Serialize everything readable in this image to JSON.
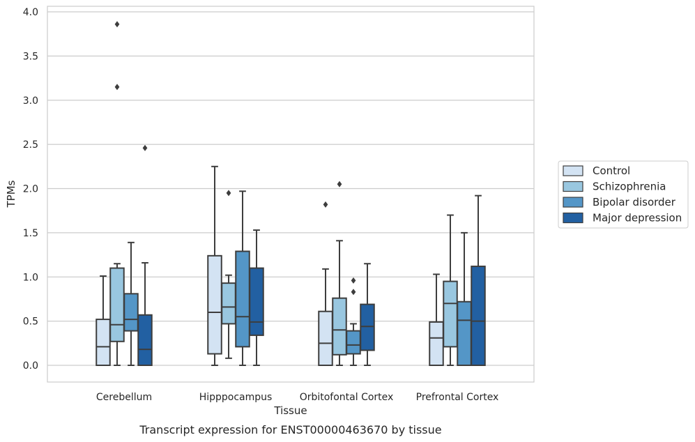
{
  "caption": "Transcript expression for ENST00000463670 by tissue",
  "chart_data": {
    "type": "box",
    "xlabel": "Tissue",
    "ylabel": "TPMs",
    "ylim": [
      -0.18,
      4.05
    ],
    "yticks": [
      "0.0",
      "0.5",
      "1.0",
      "1.5",
      "2.0",
      "2.5",
      "3.0",
      "3.5",
      "4.0"
    ],
    "categories": [
      "Cerebellum",
      "Hipppocampus",
      "Orbitofontal Cortex",
      "Prefrontal Cortex"
    ],
    "grid": "horizontal",
    "legend_position": "right",
    "series": [
      {
        "name": "Control",
        "color": "#d3e3f3",
        "boxes": [
          {
            "low": 0.0,
            "q1": 0.0,
            "median": 0.21,
            "q3": 0.52,
            "high": 1.01,
            "outliers": []
          },
          {
            "low": 0.0,
            "q1": 0.13,
            "median": 0.6,
            "q3": 1.24,
            "high": 2.25,
            "outliers": []
          },
          {
            "low": 0.0,
            "q1": 0.0,
            "median": 0.25,
            "q3": 0.61,
            "high": 1.09,
            "outliers": [
              1.82
            ]
          },
          {
            "low": 0.0,
            "q1": 0.0,
            "median": 0.31,
            "q3": 0.49,
            "high": 1.03,
            "outliers": []
          }
        ]
      },
      {
        "name": "Schizophrenia",
        "color": "#99c7e0",
        "boxes": [
          {
            "low": 0.0,
            "q1": 0.27,
            "median": 0.46,
            "q3": 1.1,
            "high": 1.15,
            "outliers": [
              3.86,
              3.15
            ]
          },
          {
            "low": 0.08,
            "q1": 0.47,
            "median": 0.66,
            "q3": 0.93,
            "high": 1.02,
            "outliers": [
              1.95
            ]
          },
          {
            "low": 0.0,
            "q1": 0.12,
            "median": 0.4,
            "q3": 0.76,
            "high": 1.41,
            "outliers": [
              2.05
            ]
          },
          {
            "low": 0.0,
            "q1": 0.21,
            "median": 0.7,
            "q3": 0.95,
            "high": 1.7,
            "outliers": []
          }
        ]
      },
      {
        "name": "Bipolar disorder",
        "color": "#5496c7",
        "boxes": [
          {
            "low": 0.0,
            "q1": 0.39,
            "median": 0.52,
            "q3": 0.81,
            "high": 1.39,
            "outliers": []
          },
          {
            "low": 0.0,
            "q1": 0.21,
            "median": 0.55,
            "q3": 1.29,
            "high": 1.97,
            "outliers": []
          },
          {
            "low": 0.0,
            "q1": 0.13,
            "median": 0.23,
            "q3": 0.39,
            "high": 0.47,
            "outliers": [
              0.96,
              0.83
            ]
          },
          {
            "low": 0.0,
            "q1": 0.0,
            "median": 0.51,
            "q3": 0.72,
            "high": 1.5,
            "outliers": []
          }
        ]
      },
      {
        "name": "Major depression",
        "color": "#2260a2",
        "boxes": [
          {
            "low": 0.0,
            "q1": 0.0,
            "median": 0.18,
            "q3": 0.57,
            "high": 1.16,
            "outliers": [
              2.46
            ]
          },
          {
            "low": 0.0,
            "q1": 0.34,
            "median": 0.49,
            "q3": 1.1,
            "high": 1.53,
            "outliers": []
          },
          {
            "low": 0.0,
            "q1": 0.17,
            "median": 0.44,
            "q3": 0.69,
            "high": 1.15,
            "outliers": []
          },
          {
            "low": 0.0,
            "q1": 0.0,
            "median": 0.5,
            "q3": 1.12,
            "high": 1.92,
            "outliers": []
          }
        ]
      }
    ]
  }
}
